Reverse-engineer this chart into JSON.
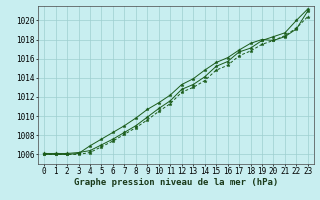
{
  "x": [
    0,
    1,
    2,
    3,
    4,
    5,
    6,
    7,
    8,
    9,
    10,
    11,
    12,
    13,
    14,
    15,
    16,
    17,
    18,
    19,
    20,
    21,
    22,
    23
  ],
  "line1": [
    1006.1,
    1006.1,
    1006.1,
    1006.2,
    1006.4,
    1007.0,
    1007.6,
    1008.3,
    1009.0,
    1009.9,
    1010.8,
    1011.6,
    1012.8,
    1013.3,
    1014.1,
    1015.2,
    1015.7,
    1016.7,
    1017.1,
    1017.9,
    1018.3,
    1018.7,
    1020.0,
    1021.2
  ],
  "line2": [
    1006.0,
    1006.0,
    1006.0,
    1006.0,
    1006.2,
    1006.8,
    1007.4,
    1008.1,
    1008.8,
    1009.6,
    1010.5,
    1011.3,
    1012.5,
    1013.0,
    1013.7,
    1014.8,
    1015.3,
    1016.3,
    1016.8,
    1017.5,
    1017.9,
    1018.4,
    1019.2,
    1020.4
  ],
  "line3": [
    1006.0,
    1006.0,
    1006.0,
    1006.1,
    1006.9,
    1007.6,
    1008.3,
    1009.0,
    1009.8,
    1010.7,
    1011.4,
    1012.2,
    1013.3,
    1013.9,
    1014.8,
    1015.6,
    1016.1,
    1016.9,
    1017.6,
    1018.0,
    1017.9,
    1018.3,
    1019.1,
    1021.0
  ],
  "line_color": "#1a5c1a",
  "bg_color": "#c8eef0",
  "grid_color": "#9ecfcf",
  "xlabel": "Graphe pression niveau de la mer (hPa)",
  "ylim": [
    1005.0,
    1021.5
  ],
  "xlim": [
    -0.5,
    23.5
  ],
  "yticks": [
    1006,
    1008,
    1010,
    1012,
    1014,
    1016,
    1018,
    1020
  ],
  "xticks": [
    0,
    1,
    2,
    3,
    4,
    5,
    6,
    7,
    8,
    9,
    10,
    11,
    12,
    13,
    14,
    15,
    16,
    17,
    18,
    19,
    20,
    21,
    22,
    23
  ],
  "marker": "*",
  "marker_size": 2.5,
  "linewidth": 0.7,
  "xlabel_fontsize": 6.5,
  "tick_fontsize": 5.5
}
